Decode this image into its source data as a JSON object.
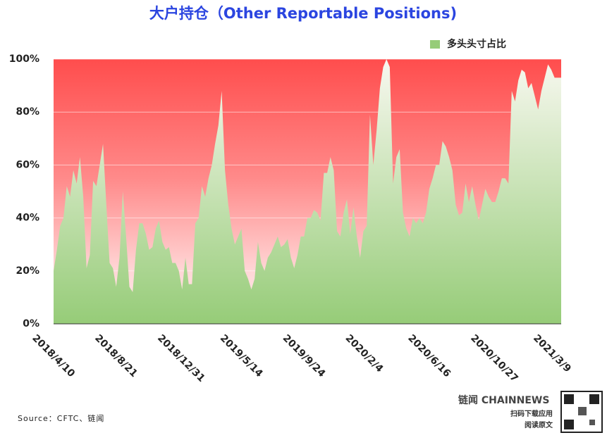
{
  "chart_data": {
    "type": "area",
    "title": "大户持仓（Other Reportable Positions)",
    "source": "Source：CFTC、链闻",
    "footer": {
      "brand": "链闻 CHAINNEWS",
      "line1": "扫码下载应用",
      "line2": "阅读原文"
    },
    "legend_position": "top-right",
    "grid": true,
    "categories": [
      "2018/4/10",
      null,
      null,
      null,
      null,
      null,
      null,
      null,
      null,
      null,
      null,
      null,
      null,
      null,
      null,
      null,
      null,
      null,
      null,
      "2018/8/21",
      null,
      null,
      null,
      null,
      null,
      null,
      null,
      null,
      null,
      null,
      null,
      null,
      null,
      null,
      null,
      null,
      null,
      null,
      "2018/12/31",
      null,
      null,
      null,
      null,
      null,
      null,
      null,
      null,
      null,
      null,
      null,
      null,
      null,
      null,
      null,
      null,
      null,
      null,
      "2019/5/14",
      null,
      null,
      null,
      null,
      null,
      null,
      null,
      null,
      null,
      null,
      null,
      null,
      null,
      null,
      null,
      null,
      null,
      null,
      "2019/9/24",
      null,
      null,
      null,
      null,
      null,
      null,
      null,
      null,
      null,
      null,
      null,
      null,
      null,
      null,
      null,
      null,
      null,
      null,
      "2020/2/4",
      null,
      null,
      null,
      null,
      null,
      null,
      null,
      null,
      null,
      null,
      null,
      null,
      null,
      null,
      null,
      null,
      null,
      null,
      "2020/6/16",
      null,
      null,
      null,
      null,
      null,
      null,
      null,
      null,
      null,
      null,
      null,
      null,
      null,
      null,
      null,
      null,
      null,
      null,
      "2020/10/27",
      null,
      null,
      null,
      null,
      null,
      null,
      null,
      null,
      null,
      null,
      null,
      null,
      null,
      null,
      null,
      null,
      null,
      null,
      "2021/3/9",
      null,
      null
    ],
    "series": [
      {
        "name": "多头头寸占比",
        "color": "#96cc78",
        "values": [
          20,
          28,
          37,
          40,
          52,
          48,
          58,
          53,
          63,
          48,
          21,
          26,
          54,
          52,
          60,
          68,
          45,
          23,
          21,
          14,
          25,
          50,
          33,
          14,
          12,
          28,
          38,
          38,
          34,
          28,
          29,
          36,
          39,
          31,
          28,
          29,
          23,
          23,
          20,
          13,
          25,
          15,
          15,
          38,
          40,
          52,
          48,
          55,
          60,
          68,
          75,
          88,
          58,
          45,
          36,
          30,
          33,
          36,
          20,
          17,
          13,
          17,
          31,
          23,
          20,
          25,
          27,
          30,
          33,
          29,
          30,
          32,
          25,
          21,
          26,
          33,
          33,
          40,
          40,
          43,
          42,
          39,
          57,
          57,
          63,
          58,
          35,
          33,
          42,
          47,
          34,
          44,
          33,
          25,
          35,
          37,
          79,
          60,
          73,
          89,
          97,
          100,
          97,
          53,
          63,
          66,
          42,
          36,
          33,
          40,
          38,
          40,
          38,
          42,
          51,
          55,
          60,
          60,
          69,
          67,
          63,
          58,
          45,
          41,
          42,
          53,
          46,
          52,
          45,
          39,
          45,
          51,
          48,
          46,
          46,
          50,
          55,
          55,
          53,
          88,
          84,
          92,
          96,
          95,
          89,
          91,
          86,
          81,
          88,
          93,
          98,
          96,
          93,
          93,
          93
        ]
      }
    ],
    "ylim": [
      0,
      100
    ],
    "yticks": [
      {
        "value": 0,
        "label": "0%"
      },
      {
        "value": 20,
        "label": "20%"
      },
      {
        "value": 40,
        "label": "40%"
      },
      {
        "value": 60,
        "label": "60%"
      },
      {
        "value": 80,
        "label": "80%"
      },
      {
        "value": 100,
        "label": "100%"
      }
    ]
  }
}
